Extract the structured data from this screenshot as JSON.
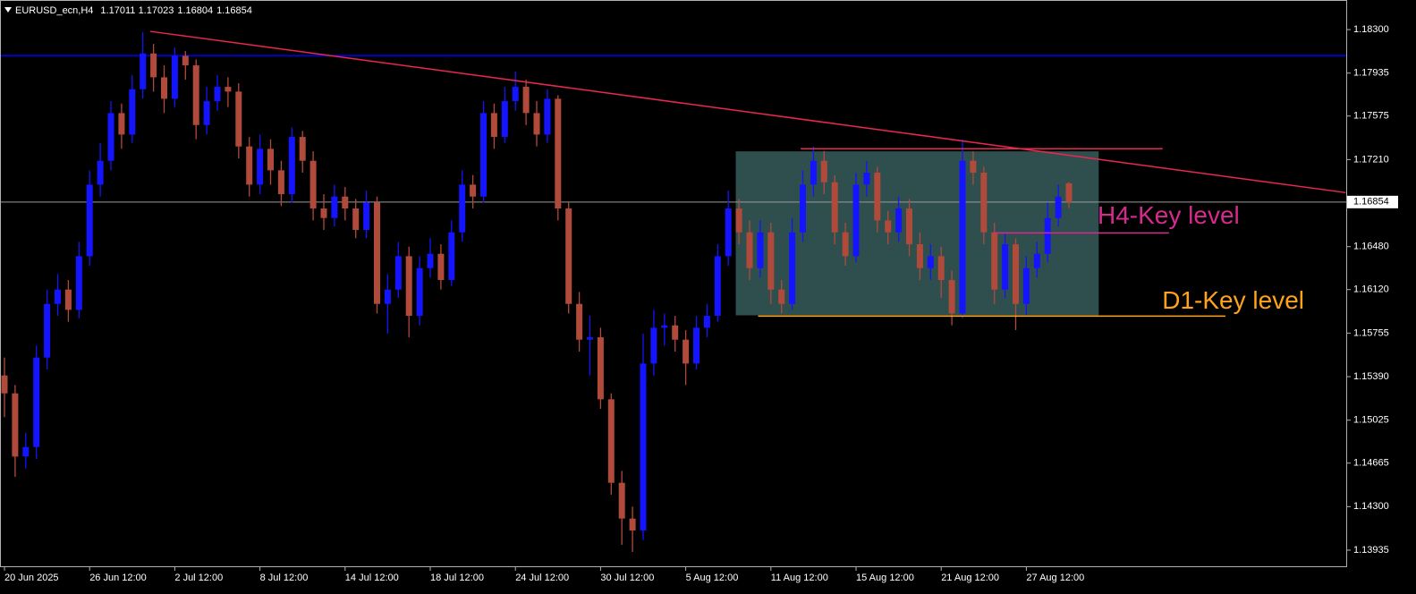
{
  "chart_data": {
    "type": "candlestick",
    "title": "EURUSD_ecn,H4",
    "ohlc": [
      1.17011,
      1.17023,
      1.16804,
      1.16854
    ],
    "current_price": 1.16854,
    "up_color": "#1414ff",
    "down_color": "#b04a3a",
    "ylim": [
      1.138,
      1.18548
    ],
    "yticks": [
      {
        "value": 1.183,
        "label": "1.18300"
      },
      1.17935,
      1.17575,
      {
        "value": 1.1721,
        "label": "1.17210"
      },
      {
        "value": 1.1648,
        "label": "1.16480"
      },
      {
        "value": 1.1612,
        "label": "1.16120"
      },
      1.15755,
      {
        "value": 1.1539,
        "label": "1.15390"
      },
      1.15025,
      1.14665,
      {
        "value": 1.143,
        "label": "1.14300"
      },
      1.13935
    ],
    "categories": [
      "20 Jun 2025",
      null,
      null,
      null,
      null,
      null,
      null,
      null,
      "26 Jun 12:00",
      null,
      null,
      null,
      null,
      null,
      null,
      null,
      "2 Jul 12:00",
      null,
      null,
      null,
      null,
      null,
      null,
      null,
      "8 Jul 12:00",
      null,
      null,
      null,
      null,
      null,
      null,
      null,
      "14 Jul 12:00",
      null,
      null,
      null,
      null,
      null,
      null,
      null,
      "18 Jul 12:00",
      null,
      null,
      null,
      null,
      null,
      null,
      null,
      "24 Jul 12:00",
      null,
      null,
      null,
      null,
      null,
      null,
      null,
      "30 Jul 12:00",
      null,
      null,
      null,
      null,
      null,
      null,
      null,
      "5 Aug 12:00",
      null,
      null,
      null,
      null,
      null,
      null,
      null,
      "11 Aug 12:00",
      null,
      null,
      null,
      null,
      null,
      null,
      null,
      "15 Aug 12:00",
      null,
      null,
      null,
      null,
      null,
      null,
      null,
      "21 Aug 12:00",
      null,
      null,
      null,
      null,
      null,
      null,
      null,
      "27 Aug 12:00",
      null,
      null,
      null,
      null
    ],
    "open": [
      1.154,
      1.1525,
      1.1472,
      1.148,
      1.1555,
      1.16,
      1.1612,
      1.1595,
      1.164,
      1.17,
      1.172,
      1.176,
      1.1742,
      1.178,
      1.181,
      1.179,
      1.1772,
      1.1808,
      1.18,
      1.175,
      1.177,
      1.1782,
      1.1778,
      1.1732,
      1.17,
      1.173,
      1.1712,
      1.1692,
      1.174,
      1.172,
      1.168,
      1.1672,
      1.169,
      1.168,
      1.1662,
      1.1685,
      1.16,
      1.1612,
      1.164,
      1.159,
      1.163,
      1.1642,
      1.162,
      1.166,
      1.17,
      1.169,
      1.176,
      1.174,
      1.177,
      1.1782,
      1.176,
      1.1742,
      1.1772,
      1.168,
      1.16,
      1.157,
      1.1572,
      1.152,
      1.145,
      1.142,
      1.141,
      1.155,
      1.158,
      1.1582,
      1.157,
      1.155,
      1.158,
      1.159,
      1.164,
      1.168,
      1.166,
      1.163,
      1.166,
      1.1612,
      1.16,
      1.166,
      1.17,
      1.172,
      1.1702,
      1.166,
      1.164,
      1.17,
      1.171,
      1.167,
      1.166,
      1.168,
      1.165,
      1.163,
      1.164,
      1.162,
      1.1592,
      1.172,
      1.171,
      1.166,
      1.1612,
      1.165,
      1.16,
      1.163,
      1.1642,
      1.1672,
      1.17011
    ],
    "high": [
      1.1555,
      1.1532,
      1.1492,
      1.1565,
      1.1612,
      1.1625,
      1.162,
      1.1652,
      1.1712,
      1.1735,
      1.177,
      1.1768,
      1.1792,
      1.1828,
      1.1818,
      1.18,
      1.1815,
      1.1812,
      1.1805,
      1.1782,
      1.1792,
      1.179,
      1.1785,
      1.174,
      1.1742,
      1.1738,
      1.172,
      1.1748,
      1.1745,
      1.1728,
      1.1692,
      1.17,
      1.1698,
      1.1688,
      1.1695,
      1.169,
      1.1625,
      1.1652,
      1.1648,
      1.164,
      1.1655,
      1.165,
      1.167,
      1.1712,
      1.1708,
      1.177,
      1.1768,
      1.1782,
      1.1795,
      1.1788,
      1.177,
      1.178,
      1.1775,
      1.1685,
      1.161,
      1.159,
      1.158,
      1.1525,
      1.146,
      1.143,
      1.1575,
      1.1595,
      1.1592,
      1.159,
      1.1578,
      1.159,
      1.16,
      1.165,
      1.1695,
      1.1688,
      1.167,
      1.167,
      1.1668,
      1.162,
      1.1672,
      1.1712,
      1.1732,
      1.1728,
      1.1708,
      1.1668,
      1.171,
      1.172,
      1.1715,
      1.1678,
      1.169,
      1.1688,
      1.166,
      1.165,
      1.1648,
      1.1628,
      1.1738,
      1.1728,
      1.1715,
      1.1668,
      1.166,
      1.1655,
      1.164,
      1.1652,
      1.1685,
      1.17,
      1.17023
    ],
    "low": [
      1.1505,
      1.1455,
      1.1462,
      1.147,
      1.1545,
      1.159,
      1.1585,
      1.1588,
      1.1632,
      1.169,
      1.1712,
      1.173,
      1.1735,
      1.1772,
      1.1778,
      1.176,
      1.1765,
      1.1788,
      1.1738,
      1.1742,
      1.1762,
      1.1765,
      1.1722,
      1.169,
      1.1692,
      1.17,
      1.1682,
      1.1685,
      1.171,
      1.167,
      1.1662,
      1.1665,
      1.167,
      1.1655,
      1.1655,
      1.1592,
      1.1575,
      1.1605,
      1.1572,
      1.1582,
      1.1622,
      1.1612,
      1.1615,
      1.1652,
      1.168,
      1.1685,
      1.173,
      1.1735,
      1.1762,
      1.175,
      1.1732,
      1.1735,
      1.167,
      1.1592,
      1.156,
      1.154,
      1.1512,
      1.144,
      1.1398,
      1.1392,
      1.1402,
      1.154,
      1.1565,
      1.156,
      1.1532,
      1.1545,
      1.1572,
      1.1585,
      1.1632,
      1.165,
      1.162,
      1.1622,
      1.16,
      1.1592,
      1.1595,
      1.1652,
      1.169,
      1.1692,
      1.165,
      1.1632,
      1.1635,
      1.169,
      1.166,
      1.165,
      1.1652,
      1.164,
      1.162,
      1.162,
      1.1605,
      1.1582,
      1.1588,
      1.17,
      1.165,
      1.16,
      1.1605,
      1.1578,
      1.159,
      1.1622,
      1.1635,
      1.1665,
      1.16804
    ],
    "close": [
      1.1525,
      1.1472,
      1.148,
      1.1555,
      1.16,
      1.1612,
      1.1595,
      1.164,
      1.17,
      1.172,
      1.176,
      1.1742,
      1.178,
      1.181,
      1.179,
      1.1772,
      1.1808,
      1.18,
      1.175,
      1.177,
      1.1782,
      1.1778,
      1.1732,
      1.17,
      1.173,
      1.1712,
      1.1692,
      1.174,
      1.172,
      1.168,
      1.1672,
      1.169,
      1.168,
      1.1662,
      1.1685,
      1.16,
      1.1612,
      1.164,
      1.159,
      1.163,
      1.1642,
      1.162,
      1.166,
      1.17,
      1.169,
      1.176,
      1.174,
      1.177,
      1.1782,
      1.176,
      1.1742,
      1.1772,
      1.168,
      1.16,
      1.157,
      1.1572,
      1.152,
      1.145,
      1.142,
      1.141,
      1.155,
      1.158,
      1.1582,
      1.157,
      1.155,
      1.158,
      1.159,
      1.164,
      1.168,
      1.166,
      1.163,
      1.166,
      1.1612,
      1.16,
      1.166,
      1.17,
      1.172,
      1.1702,
      1.166,
      1.164,
      1.17,
      1.171,
      1.167,
      1.166,
      1.168,
      1.165,
      1.163,
      1.164,
      1.162,
      1.1592,
      1.172,
      1.171,
      1.166,
      1.1612,
      1.165,
      1.16,
      1.163,
      1.1642,
      1.1672,
      1.169,
      1.16854
    ],
    "overlays": {
      "trendline": {
        "x": [
          13.7,
          126
        ],
        "y": [
          1.18285,
          1.16933
        ],
        "color": "#e8284f"
      },
      "resistance_line": {
        "y": 1.18082,
        "color": "#0000ff"
      },
      "price_line_color": "#9a9a9a",
      "range_box": {
        "x": [
          68.7,
          102.8
        ],
        "y": [
          1.17279,
          1.15904
        ],
        "color": "#2f4f4f"
      },
      "range_top": {
        "x": [
          74.8,
          108.8
        ],
        "y": 1.17301,
        "color": "#e8284f"
      }
    },
    "annotations": [
      {
        "text": "H4-Key level",
        "color": "#d62a8f",
        "x": [
          92.9,
          109.4
        ],
        "y": 1.16595
      },
      {
        "text": "D1-Key level",
        "color": "#ffa31a",
        "x": [
          70.8,
          114.7
        ],
        "y": 1.15897
      }
    ]
  }
}
